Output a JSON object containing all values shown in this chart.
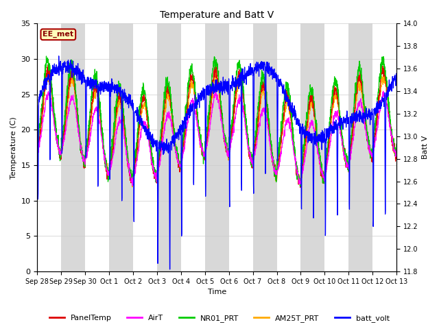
{
  "title": "Temperature and Batt V",
  "xlabel": "Time",
  "ylabel_left": "Temperature (C)",
  "ylabel_right": "Batt V",
  "ylim_left": [
    0,
    35
  ],
  "ylim_right": [
    11.8,
    14.0
  ],
  "yticks_left": [
    0,
    5,
    10,
    15,
    20,
    25,
    30,
    35
  ],
  "yticks_right": [
    11.8,
    12.0,
    12.2,
    12.4,
    12.6,
    12.8,
    13.0,
    13.2,
    13.4,
    13.6,
    13.8,
    14.0
  ],
  "xtick_labels": [
    "Sep 28",
    "Sep 29",
    "Sep 30",
    "Oct 1",
    "Oct 2",
    "Oct 3",
    "Oct 4",
    "Oct 5",
    "Oct 6",
    "Oct 7",
    "Oct 8",
    "Oct 9",
    "Oct 10",
    "Oct 11",
    "Oct 12",
    "Oct 13"
  ],
  "station_label": "EE_met",
  "legend_entries": [
    {
      "label": "PanelTemp",
      "color": "#dd0000"
    },
    {
      "label": "AirT",
      "color": "#ff00ff"
    },
    {
      "label": "NR01_PRT",
      "color": "#00cc00"
    },
    {
      "label": "AM25T_PRT",
      "color": "#ffaa00"
    },
    {
      "label": "batt_volt",
      "color": "#0000ff"
    }
  ],
  "bg_band_color": "#d8d8d8",
  "background_color": "#ffffff",
  "n_days": 15,
  "points_per_day": 144,
  "figsize": [
    6.4,
    4.8
  ],
  "dpi": 100
}
